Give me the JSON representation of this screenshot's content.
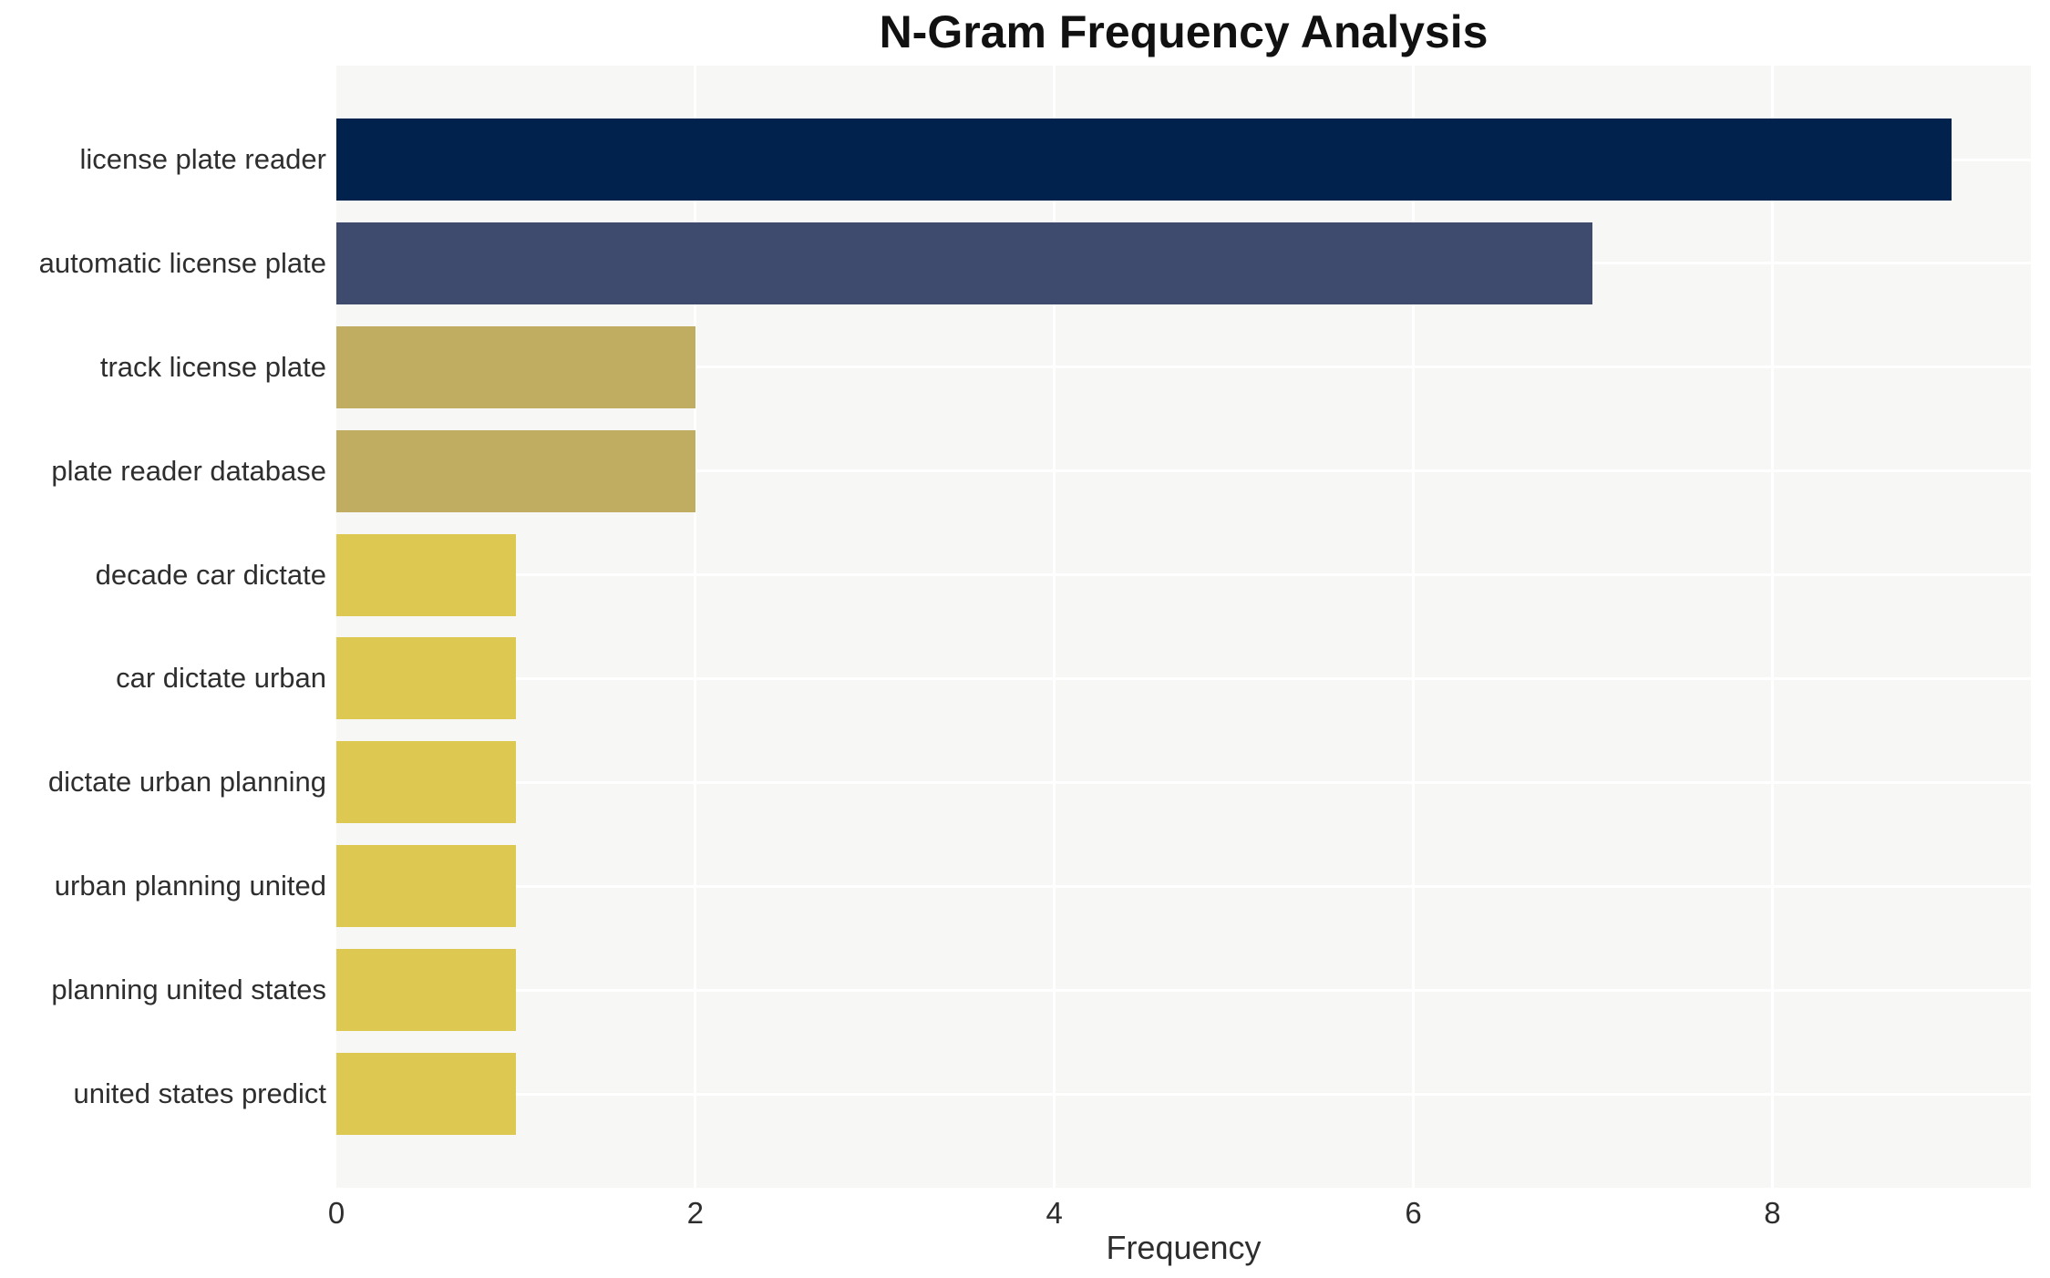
{
  "page": {
    "background": "#ffffff"
  },
  "chart_data": {
    "type": "bar",
    "orientation": "horizontal",
    "title": "N-Gram Frequency Analysis",
    "xlabel": "Frequency",
    "ylabel": "",
    "categories": [
      "license plate reader",
      "automatic license plate",
      "track license plate",
      "plate reader database",
      "decade car dictate",
      "car dictate urban",
      "dictate urban planning",
      "urban planning united",
      "planning united states",
      "united states predict"
    ],
    "values": [
      9,
      7,
      2,
      2,
      1,
      1,
      1,
      1,
      1,
      1
    ],
    "bar_colors": [
      "#00224d",
      "#3e4a6e",
      "#c0ad62",
      "#c0ad62",
      "#ddc952",
      "#ddc952",
      "#ddc952",
      "#ddc952",
      "#ddc952",
      "#ddc952"
    ],
    "xticks": [
      0,
      2,
      4,
      6,
      8
    ],
    "xlim": [
      0,
      9.44
    ],
    "grid": true,
    "legend": "none",
    "plot_background": "#f7f7f5",
    "grid_color": "#ffffff",
    "tick_label_color": "#2e2e2e",
    "title_color": "#111111"
  }
}
